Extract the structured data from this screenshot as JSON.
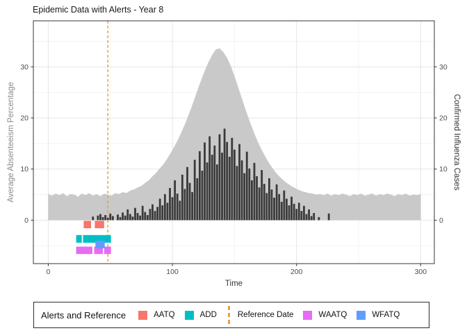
{
  "chart_data": {
    "type": "combo",
    "title": "Epidemic Data with Alerts - Year 8",
    "xlabel": "Time",
    "ylabel_left": "Average Absenteeism Percentage",
    "ylabel_right": "Confirmed Influenza Cases",
    "xlim": [
      -12,
      311
    ],
    "ylim": [
      -8.5,
      39
    ],
    "x_ticks": [
      0,
      100,
      200,
      300
    ],
    "x_minor_ticks": [
      50,
      150,
      250
    ],
    "y_ticks_left": [
      0,
      10,
      20,
      30
    ],
    "y_ticks_right": [
      0,
      10,
      20,
      30
    ],
    "y_minor_ticks": [
      -5,
      5,
      15,
      25,
      35
    ],
    "grid": true,
    "reference_date": 48,
    "series": [
      {
        "name": "average_absenteeism_percentage",
        "type": "area",
        "axis": "left",
        "color": "#C9C9C9",
        "t0": 0,
        "dt": 3,
        "values": [
          5.1,
          4.8,
          5.2,
          4.9,
          5.3,
          4.7,
          5.1,
          5.0,
          4.6,
          5.2,
          4.9,
          5.3,
          4.8,
          5.1,
          4.7,
          5.2,
          5.0,
          4.8,
          5.3,
          5.1,
          5.5,
          5.3,
          5.8,
          6.0,
          6.4,
          6.7,
          7.3,
          7.8,
          8.6,
          9.3,
          10.2,
          11.0,
          12.1,
          13.3,
          14.6,
          16.0,
          17.6,
          19.3,
          21.2,
          23.2,
          25.3,
          27.3,
          29.2,
          30.9,
          32.3,
          33.4,
          33.6,
          32.9,
          31.8,
          30.2,
          28.2,
          26.0,
          23.8,
          21.6,
          19.5,
          17.6,
          15.8,
          14.2,
          12.8,
          11.5,
          10.4,
          9.4,
          8.6,
          7.9,
          7.3,
          6.8,
          6.4,
          6.0,
          5.7,
          5.5,
          5.3,
          5.2,
          5.0,
          5.1,
          4.9,
          5.2,
          4.8,
          5.1,
          4.9,
          5.2,
          5.0,
          4.7,
          5.1,
          4.9,
          5.2,
          4.8,
          5.0,
          5.2,
          4.8,
          5.1,
          4.9,
          5.2,
          5.0,
          4.7,
          5.1,
          4.9,
          5.2,
          4.8,
          5.0,
          4.9,
          5.1
        ]
      },
      {
        "name": "confirmed_influenza_cases",
        "type": "bar",
        "axis": "right",
        "color": "#3A3A3A",
        "t0": 30,
        "dt": 2,
        "values": [
          0,
          0,
          0,
          0.7,
          0,
          0.9,
          1.2,
          0.6,
          1.0,
          0.5,
          1.3,
          0.8,
          0,
          1.1,
          0.6,
          1.5,
          0.9,
          2.1,
          1.2,
          0.7,
          2.4,
          1.4,
          0.9,
          2.8,
          1.6,
          1.0,
          2.2,
          3.1,
          1.8,
          2.6,
          4.2,
          2.9,
          5.1,
          3.4,
          6.3,
          4.5,
          7.8,
          5.2,
          3.8,
          8.9,
          6.1,
          10.4,
          7.3,
          5.5,
          11.8,
          8.2,
          13.5,
          9.7,
          15.2,
          11.3,
          16.4,
          12.8,
          14.6,
          10.9,
          16.8,
          13.2,
          17.9,
          15.3,
          12.4,
          16.1,
          13.8,
          10.6,
          14.9,
          11.7,
          9.2,
          13.4,
          10.1,
          7.8,
          11.2,
          8.6,
          6.4,
          9.8,
          7.1,
          5.3,
          8.2,
          6.0,
          4.4,
          7.0,
          5.1,
          3.6,
          5.8,
          4.2,
          2.9,
          4.6,
          3.2,
          2.2,
          3.4,
          1.8,
          2.8,
          1.2,
          2.1,
          0.8,
          1.4,
          0,
          0.6,
          0,
          0,
          0,
          1.3,
          0,
          0,
          0,
          0,
          0,
          0,
          0
        ]
      }
    ],
    "alerts": [
      {
        "name": "AATQ",
        "color": "#F8766D",
        "row_center": -0.85,
        "row_height": 1.45,
        "segments": [
          [
            28.5,
            34.5
          ],
          [
            37.5,
            45
          ]
        ]
      },
      {
        "name": "ADD",
        "color": "#00BFC4",
        "row_center": -3.66,
        "row_height": 1.5,
        "segments": [
          [
            22.5,
            27
          ],
          [
            28,
            50.5
          ]
        ]
      },
      {
        "name": "WAATQ",
        "color": "#E76BF3",
        "row_center": -5.9,
        "row_height": 1.45,
        "segments": [
          [
            22.5,
            35.5
          ],
          [
            37,
            44
          ],
          [
            45,
            50.5
          ]
        ]
      },
      {
        "name": "WFATQ",
        "color": "#619CFF",
        "row_center": -4.75,
        "row_height": 1.5,
        "segments": [
          [
            38,
            45.5
          ]
        ]
      }
    ],
    "legend": {
      "title": "Alerts and Reference",
      "position": "bottom",
      "items": [
        {
          "label": "AATQ",
          "glyph": "square",
          "color": "#F8766D"
        },
        {
          "label": "ADD",
          "glyph": "square",
          "color": "#00BFC4"
        },
        {
          "label": "Reference Date",
          "glyph": "dashed-line",
          "color": "#E9A23B"
        },
        {
          "label": "WAATQ",
          "glyph": "square",
          "color": "#E76BF3"
        },
        {
          "label": "WFATQ",
          "glyph": "square",
          "color": "#619CFF"
        }
      ]
    },
    "colors": {
      "reference_line": "#E9A23B",
      "panel_border": "#333333",
      "grid_major": "#E4E4E4",
      "grid_minor": "#F1F1F1",
      "tick_text": "#4d4d4d"
    }
  }
}
